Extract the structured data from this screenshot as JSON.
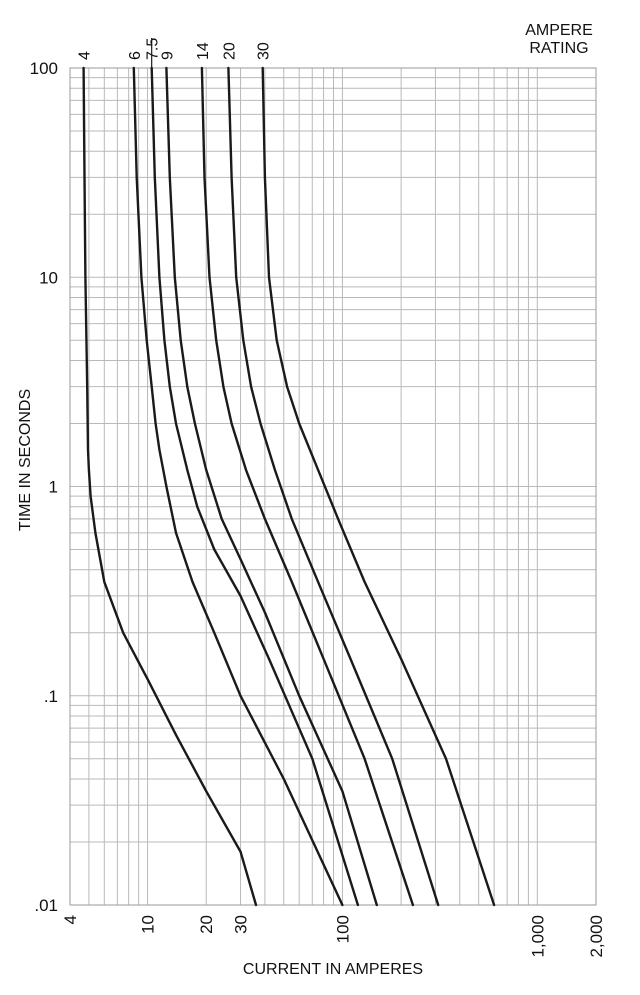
{
  "chart_data": {
    "type": "line",
    "title": "",
    "xlabel": "CURRENT IN AMPERES",
    "ylabel": "TIME IN SECONDS",
    "x_scale": "log",
    "y_scale": "log",
    "xlim": [
      4,
      2000
    ],
    "ylim": [
      0.01,
      100
    ],
    "grid": true,
    "x_ticks": [
      {
        "value": 4,
        "label": "4"
      },
      {
        "value": 10,
        "label": "10"
      },
      {
        "value": 20,
        "label": "20"
      },
      {
        "value": 30,
        "label": "30"
      },
      {
        "value": 100,
        "label": "100"
      },
      {
        "value": 1000,
        "label": "1,000"
      },
      {
        "value": 2000,
        "label": "2,000"
      }
    ],
    "y_ticks": [
      {
        "value": 100,
        "label": "100"
      },
      {
        "value": 10,
        "label": "10"
      },
      {
        "value": 1,
        "label": "1"
      },
      {
        "value": 0.1,
        "label": ".1"
      },
      {
        "value": 0.01,
        "label": ".01"
      }
    ],
    "legend_title_lines": [
      "AMPERE",
      "RATING"
    ],
    "series": [
      {
        "name": "4",
        "points": [
          [
            4.7,
            100
          ],
          [
            4.75,
            30
          ],
          [
            4.8,
            10
          ],
          [
            4.9,
            3
          ],
          [
            4.95,
            1.5
          ],
          [
            5.0,
            1.2
          ],
          [
            5.1,
            0.9
          ],
          [
            5.4,
            0.6
          ],
          [
            6,
            0.35
          ],
          [
            7.5,
            0.2
          ],
          [
            10,
            0.12
          ],
          [
            14,
            0.065
          ],
          [
            20,
            0.035
          ],
          [
            30,
            0.018
          ],
          [
            36,
            0.01
          ]
        ]
      },
      {
        "name": "6",
        "points": [
          [
            8.5,
            100
          ],
          [
            8.8,
            30
          ],
          [
            9.3,
            10
          ],
          [
            9.9,
            5
          ],
          [
            10.5,
            3
          ],
          [
            11,
            2
          ],
          [
            11.5,
            1.5
          ],
          [
            12.5,
            1
          ],
          [
            14,
            0.6
          ],
          [
            17,
            0.35
          ],
          [
            22,
            0.2
          ],
          [
            30,
            0.1
          ],
          [
            50,
            0.04
          ],
          [
            100,
            0.01
          ]
        ]
      },
      {
        "name": "7.5",
        "points": [
          [
            10.5,
            100
          ],
          [
            10.9,
            30
          ],
          [
            11.5,
            10
          ],
          [
            12.2,
            5
          ],
          [
            13,
            3
          ],
          [
            14,
            2
          ],
          [
            16,
            1.2
          ],
          [
            18,
            0.8
          ],
          [
            22,
            0.5
          ],
          [
            30,
            0.3
          ],
          [
            42,
            0.15
          ],
          [
            70,
            0.05
          ],
          [
            120,
            0.01
          ]
        ]
      },
      {
        "name": "9",
        "points": [
          [
            12.5,
            100
          ],
          [
            13,
            30
          ],
          [
            13.8,
            10
          ],
          [
            14.8,
            5
          ],
          [
            16,
            3
          ],
          [
            17.5,
            2
          ],
          [
            20,
            1.2
          ],
          [
            24,
            0.7
          ],
          [
            30,
            0.45
          ],
          [
            40,
            0.25
          ],
          [
            60,
            0.1
          ],
          [
            100,
            0.035
          ],
          [
            150,
            0.01
          ]
        ]
      },
      {
        "name": "14",
        "points": [
          [
            19,
            100
          ],
          [
            19.6,
            30
          ],
          [
            20.8,
            10
          ],
          [
            22.5,
            5
          ],
          [
            24.5,
            3
          ],
          [
            27,
            2
          ],
          [
            32,
            1.2
          ],
          [
            40,
            0.7
          ],
          [
            55,
            0.35
          ],
          [
            80,
            0.15
          ],
          [
            130,
            0.05
          ],
          [
            230,
            0.01
          ]
        ]
      },
      {
        "name": "20",
        "points": [
          [
            26,
            100
          ],
          [
            27,
            30
          ],
          [
            28.5,
            10
          ],
          [
            31,
            5
          ],
          [
            34,
            3
          ],
          [
            38,
            2
          ],
          [
            45,
            1.2
          ],
          [
            55,
            0.7
          ],
          [
            75,
            0.35
          ],
          [
            110,
            0.15
          ],
          [
            180,
            0.05
          ],
          [
            310,
            0.01
          ]
        ]
      },
      {
        "name": "30",
        "points": [
          [
            39,
            100
          ],
          [
            40,
            30
          ],
          [
            42,
            10
          ],
          [
            46,
            5
          ],
          [
            52,
            3
          ],
          [
            60,
            2
          ],
          [
            75,
            1.2
          ],
          [
            95,
            0.7
          ],
          [
            130,
            0.35
          ],
          [
            200,
            0.15
          ],
          [
            340,
            0.05
          ],
          [
            600,
            0.01
          ]
        ]
      }
    ]
  }
}
